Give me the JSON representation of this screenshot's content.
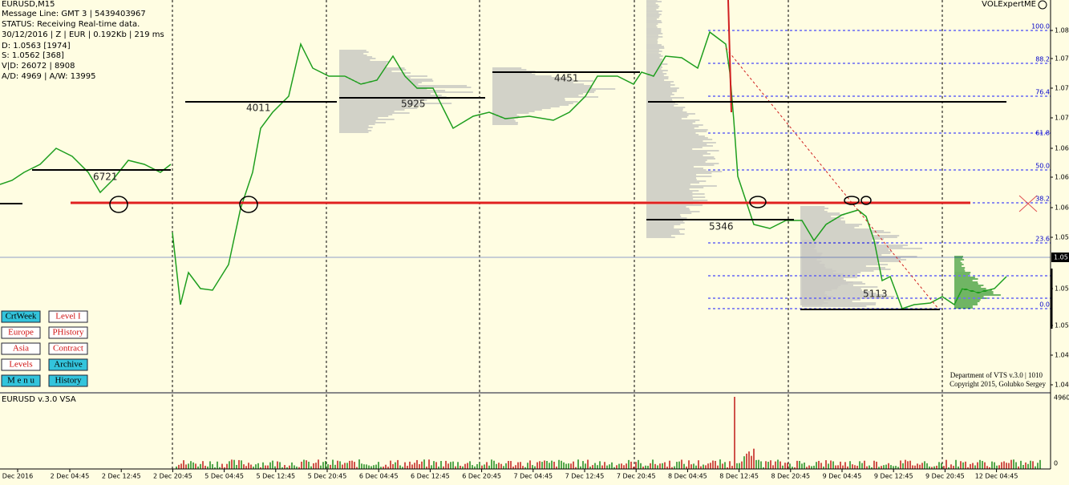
{
  "info": {
    "symbol": "EURUSD,M15",
    "message_line": "Message Line: GMT 3 | 5439403967",
    "status": "STATUS:  Receiving Real-time data.",
    "details": "30/12/2016 | Z | EUR | 0.192Kb | 219 ms",
    "d": "D: 1.0563  [1974]",
    "s": "S: 1.0562  [368]",
    "vd": "V|D: 26072 | 8908",
    "ad": "A/D: 4969 | A/W: 13995"
  },
  "indicator_name": "VOLExpertME",
  "price_axis": {
    "labels": [
      "1.08",
      "1.07",
      "1.07",
      "1.07",
      "1.06",
      "1.06",
      "1.06",
      "1.05",
      "1.05",
      "1.05",
      "1.04",
      "1.04"
    ],
    "current": "1.05"
  },
  "fib_levels": [
    "100.0",
    "88.2",
    "76.4",
    "61.8",
    "50.0",
    "38.2",
    "23.6",
    "0.0"
  ],
  "profile_volumes": [
    "6721",
    "4011",
    "5925",
    "4451",
    "5346",
    "5113"
  ],
  "buttons": [
    "CrtWeek",
    "Level I",
    "Europe",
    "PHistory",
    "Asia",
    "Contract",
    "Levels",
    "Archive",
    "M e n u",
    "History"
  ],
  "footer": {
    "department": "Department of VTS  v.3.0 | 1010",
    "copyright": "Copyright 2015, Golubko Sergey"
  },
  "subwindow": {
    "title": "EURUSD v.3.0 VSA",
    "max": "4960",
    "min": "0"
  },
  "time_axis": [
    "Dec 2016",
    "2 Dec 04:45",
    "2 Dec 12:45",
    "2 Dec 20:45",
    "5 Dec 04:45",
    "5 Dec 12:45",
    "5 Dec 20:45",
    "6 Dec 04:45",
    "6 Dec 12:45",
    "6 Dec 20:45",
    "7 Dec 04:45",
    "7 Dec 12:45",
    "7 Dec 20:45",
    "8 Dec 04:45",
    "8 Dec 12:45",
    "8 Dec 20:45",
    "9 Dec 04:45",
    "9 Dec 12:45",
    "9 Dec 20:45",
    "12 Dec 04:45"
  ]
}
